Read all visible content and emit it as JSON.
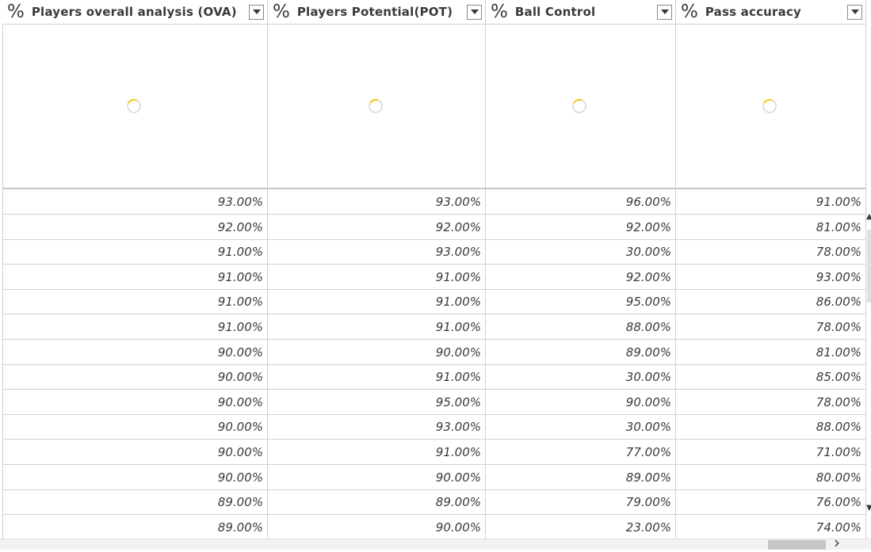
{
  "columns": [
    {
      "icon": "%",
      "title": "Players overall analysis (OVA)",
      "icon_name": "percent-icon"
    },
    {
      "icon": "%",
      "title": "Players Potential(POT)",
      "icon_name": "percent-icon"
    },
    {
      "icon": "%",
      "title": "Ball Control",
      "icon_name": "percent-icon"
    },
    {
      "icon": "%",
      "title": "Pass accuracy",
      "icon_name": "percent-icon"
    }
  ],
  "rows": [
    [
      "93.00%",
      "93.00%",
      "96.00%",
      "91.00%"
    ],
    [
      "92.00%",
      "92.00%",
      "92.00%",
      "81.00%"
    ],
    [
      "91.00%",
      "93.00%",
      "30.00%",
      "78.00%"
    ],
    [
      "91.00%",
      "91.00%",
      "92.00%",
      "93.00%"
    ],
    [
      "91.00%",
      "91.00%",
      "95.00%",
      "86.00%"
    ],
    [
      "91.00%",
      "91.00%",
      "88.00%",
      "78.00%"
    ],
    [
      "90.00%",
      "90.00%",
      "89.00%",
      "81.00%"
    ],
    [
      "90.00%",
      "91.00%",
      "30.00%",
      "85.00%"
    ],
    [
      "90.00%",
      "95.00%",
      "90.00%",
      "78.00%"
    ],
    [
      "90.00%",
      "93.00%",
      "30.00%",
      "88.00%"
    ],
    [
      "90.00%",
      "91.00%",
      "77.00%",
      "71.00%"
    ],
    [
      "90.00%",
      "90.00%",
      "89.00%",
      "80.00%"
    ],
    [
      "89.00%",
      "89.00%",
      "79.00%",
      "76.00%"
    ],
    [
      "89.00%",
      "90.00%",
      "23.00%",
      "74.00%"
    ]
  ],
  "colors": {
    "spinner_accent": "#f2c811",
    "grid_line": "#d2d0ce"
  },
  "icons": {
    "dropdown": "chevron-down-icon",
    "spinner": "loading-spinner-icon",
    "scroll_right": "chevron-right-icon"
  }
}
